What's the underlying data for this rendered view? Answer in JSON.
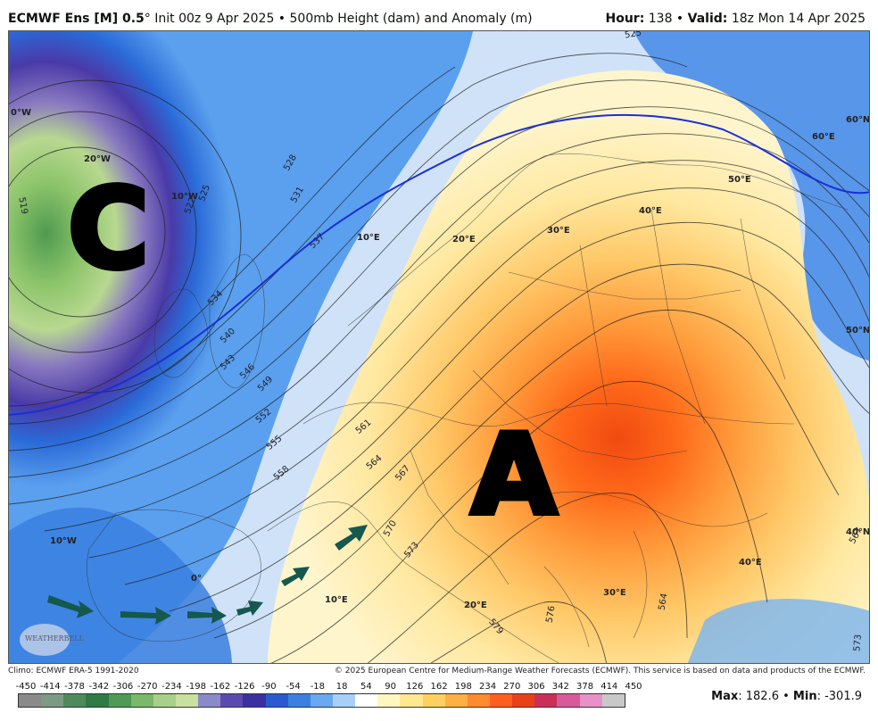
{
  "header": {
    "model": "ECMWF Ens [M] 0.5",
    "degree": "°",
    "init": " Init 00z 9 Apr 2025 • 500mb Height (dam) and Anomaly (m)",
    "hour_label": "Hour:",
    "hour_value": " 138 • ",
    "valid_label": "Valid:",
    "valid_value": " 18z Mon 14 Apr 2025"
  },
  "map": {
    "cyclone_letter": "C",
    "anticyclone_letter": "A",
    "longitude_labels": [
      "0°W",
      "20°W",
      "10°W",
      "10°E",
      "20°E",
      "30°E",
      "40°E",
      "50°E",
      "60°E",
      "10°W",
      "0°",
      "10°E",
      "20°E",
      "30°E",
      "40°E"
    ],
    "latitude_labels": [
      "60°N",
      "50°N",
      "40°N"
    ],
    "contour_labels": [
      "519",
      "522",
      "525",
      "528",
      "531",
      "534",
      "537",
      "540",
      "543",
      "546",
      "549",
      "552",
      "555",
      "558",
      "561",
      "564",
      "567",
      "570",
      "573",
      "579",
      "576",
      "525",
      "564",
      "567",
      "573"
    ],
    "logo_text": "WEATHERBELL"
  },
  "footer": {
    "climo": "Climo: ECMWF ERA-5 1991-2020",
    "copyright": "© 2025 European Centre for Medium-Range Weather Forecasts (ECMWF). This service is based on data and products of the ECMWF.",
    "scale_ticks": [
      "-450",
      "-414",
      "-378",
      "-342",
      "-306",
      "-270",
      "-234",
      "-198",
      "-162",
      "-126",
      "-90",
      "-54",
      "-18",
      "18",
      "54",
      "90",
      "126",
      "162",
      "198",
      "234",
      "270",
      "306",
      "342",
      "378",
      "414",
      "450"
    ],
    "max_label": "Max",
    "max_value": ": 182.6 • ",
    "min_label": "Min",
    "min_value": ": -301.9"
  },
  "scale_colors": [
    "#8a8a8a",
    "#7d9a82",
    "#4f8a5a",
    "#2f7a45",
    "#4f9a55",
    "#7ab86a",
    "#a8d08a",
    "#c8e0a0",
    "#8a8ac8",
    "#5a4ab0",
    "#3a30a0",
    "#2a5ad0",
    "#3a80e0",
    "#6aa8f0",
    "#a8cff8",
    "#ffffff",
    "#fff7c0",
    "#ffe890",
    "#ffd060",
    "#ffb040",
    "#ff8a30",
    "#ff6020",
    "#e84018",
    "#c8305a",
    "#d85a9a",
    "#e890c8",
    "#c8c8c8"
  ]
}
